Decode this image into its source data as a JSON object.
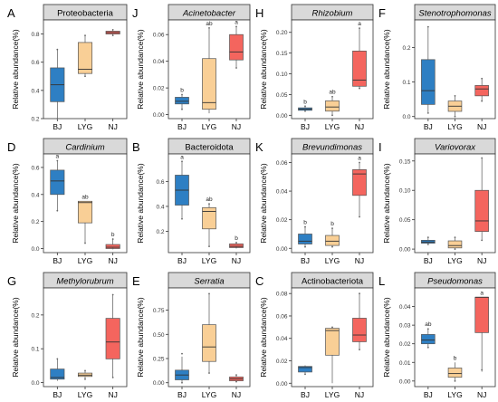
{
  "figure": {
    "ylabel": "Relative abundance(%)",
    "categories": [
      "BJ",
      "LYG",
      "NJ"
    ],
    "colors": {
      "BJ": "#2e7fc3",
      "LYG": "#f9cf96",
      "NJ": "#f4655e",
      "strip": "#d9d9d9",
      "frame": "#333333"
    }
  },
  "chart_data": [
    {
      "type": "box",
      "letter": "A",
      "title": "Proteobacteria",
      "italic": false,
      "categories": [
        "BJ",
        "LYG",
        "NJ"
      ],
      "ylim": [
        0.2,
        0.9
      ],
      "yticks": [
        0.2,
        0.4,
        0.6,
        0.8
      ],
      "ytick_labels": [
        "0.2",
        "0.4",
        "0.6",
        "0.8"
      ],
      "boxes": [
        {
          "min": 0.2,
          "q1": 0.32,
          "median": 0.44,
          "q3": 0.56,
          "max": 0.69,
          "points": [
            0.69,
            0.2
          ]
        },
        {
          "min": 0.5,
          "q1": 0.52,
          "median": 0.55,
          "q3": 0.74,
          "max": 0.79,
          "points": [
            0.79,
            0.5
          ]
        },
        {
          "min": 0.79,
          "q1": 0.8,
          "median": 0.81,
          "q3": 0.82,
          "max": 0.83,
          "points": [
            0.83,
            0.79
          ]
        }
      ],
      "sig": [
        "",
        "",
        ""
      ]
    },
    {
      "type": "box",
      "letter": "D",
      "title": "Cardinium",
      "italic": true,
      "categories": [
        "BJ",
        "LYG",
        "NJ"
      ],
      "ylim": [
        -0.03,
        0.7
      ],
      "yticks": [
        0.0,
        0.2,
        0.4,
        0.6
      ],
      "ytick_labels": [
        "0.0",
        "0.2",
        "0.4",
        "0.6"
      ],
      "boxes": [
        {
          "min": 0.28,
          "q1": 0.4,
          "median": 0.5,
          "q3": 0.58,
          "max": 0.65,
          "points": [
            0.65,
            0.28
          ]
        },
        {
          "min": 0.04,
          "q1": 0.19,
          "median": 0.34,
          "q3": 0.35,
          "max": 0.35,
          "points": [
            0.04
          ]
        },
        {
          "min": 0.0,
          "q1": 0.0,
          "median": 0.01,
          "q3": 0.03,
          "max": 0.07,
          "points": [
            0.07,
            0.0
          ]
        }
      ],
      "sig": [
        "a",
        "ab",
        "b"
      ]
    },
    {
      "type": "box",
      "letter": "G",
      "title": "Methylorubrum",
      "italic": true,
      "categories": [
        "BJ",
        "LYG",
        "NJ"
      ],
      "ylim": [
        -0.012,
        0.28
      ],
      "yticks": [
        0.0,
        0.1,
        0.2
      ],
      "ytick_labels": [
        "0.0",
        "0.1",
        "0.2"
      ],
      "boxes": [
        {
          "min": 0.005,
          "q1": 0.01,
          "median": 0.015,
          "q3": 0.04,
          "max": 0.07,
          "points": [
            0.07
          ]
        },
        {
          "min": 0.01,
          "q1": 0.018,
          "median": 0.022,
          "q3": 0.028,
          "max": 0.035,
          "points": [
            0.035,
            0.01
          ]
        },
        {
          "min": 0.015,
          "q1": 0.07,
          "median": 0.12,
          "q3": 0.19,
          "max": 0.26,
          "points": [
            0.26,
            0.015
          ]
        }
      ],
      "sig": [
        "",
        "",
        ""
      ]
    },
    {
      "type": "box",
      "letter": "J",
      "title": "Acinetobacter",
      "italic": true,
      "categories": [
        "BJ",
        "LYG",
        "NJ"
      ],
      "ylim": [
        -0.003,
        0.071
      ],
      "yticks": [
        0.0,
        0.02,
        0.04,
        0.06
      ],
      "ytick_labels": [
        "0.00",
        "0.02",
        "0.04",
        "0.06"
      ],
      "boxes": [
        {
          "min": 0.004,
          "q1": 0.008,
          "median": 0.01,
          "q3": 0.013,
          "max": 0.015,
          "points": [
            0.015,
            0.004
          ]
        },
        {
          "min": 0.001,
          "q1": 0.004,
          "median": 0.009,
          "q3": 0.042,
          "max": 0.065,
          "points": [
            0.065
          ]
        },
        {
          "min": 0.035,
          "q1": 0.041,
          "median": 0.047,
          "q3": 0.06,
          "max": 0.066,
          "points": [
            0.066,
            0.035
          ]
        }
      ],
      "sig": [
        "b",
        "ab",
        "a"
      ]
    },
    {
      "type": "box",
      "letter": "B",
      "title": "Bacteroidota",
      "italic": false,
      "categories": [
        "BJ",
        "LYG",
        "NJ"
      ],
      "ylim": [
        0.03,
        0.82
      ],
      "yticks": [
        0.2,
        0.4,
        0.6
      ],
      "ytick_labels": [
        "0.2",
        "0.4",
        "0.6"
      ],
      "boxes": [
        {
          "min": 0.3,
          "q1": 0.41,
          "median": 0.53,
          "q3": 0.65,
          "max": 0.76,
          "points": [
            0.76,
            0.3
          ]
        },
        {
          "min": 0.08,
          "q1": 0.22,
          "median": 0.36,
          "q3": 0.39,
          "max": 0.42,
          "points": [
            0.42,
            0.08
          ]
        },
        {
          "min": 0.07,
          "q1": 0.07,
          "median": 0.08,
          "q3": 0.1,
          "max": 0.11,
          "points": [
            0.11,
            0.07
          ]
        }
      ],
      "sig": [
        "a",
        "ab",
        "b"
      ]
    },
    {
      "type": "box",
      "letter": "E",
      "title": "Serratia",
      "italic": true,
      "categories": [
        "BJ",
        "LYG",
        "NJ"
      ],
      "ylim": [
        -0.04,
        0.98
      ],
      "yticks": [
        0.0,
        0.25,
        0.5,
        0.75
      ],
      "ytick_labels": [
        "0.00",
        "0.25",
        "0.50",
        "0.75"
      ],
      "boxes": [
        {
          "min": 0.0,
          "q1": 0.03,
          "median": 0.08,
          "q3": 0.13,
          "max": 0.27,
          "points": [
            0.3,
            0.0
          ]
        },
        {
          "min": 0.1,
          "q1": 0.22,
          "median": 0.37,
          "q3": 0.6,
          "max": 0.92,
          "points": [
            0.92,
            0.1
          ]
        },
        {
          "min": 0.01,
          "q1": 0.02,
          "median": 0.04,
          "q3": 0.06,
          "max": 0.08,
          "points": [
            0.08,
            0.01
          ]
        }
      ],
      "sig": [
        "",
        "",
        ""
      ]
    },
    {
      "type": "box",
      "letter": "H",
      "title": "Rhizobium",
      "italic": true,
      "categories": [
        "BJ",
        "LYG",
        "NJ"
      ],
      "ylim": [
        -0.008,
        0.23
      ],
      "yticks": [
        0.0,
        0.05,
        0.1,
        0.15,
        0.2
      ],
      "ytick_labels": [
        "0.00",
        "0.05",
        "0.10",
        "0.15",
        "0.20"
      ],
      "boxes": [
        {
          "min": 0.01,
          "q1": 0.012,
          "median": 0.015,
          "q3": 0.018,
          "max": 0.022,
          "points": [
            0.022,
            0.01
          ]
        },
        {
          "min": 0.0,
          "q1": 0.01,
          "median": 0.02,
          "q3": 0.035,
          "max": 0.045,
          "points": [
            0.045,
            0.0
          ]
        },
        {
          "min": 0.065,
          "q1": 0.07,
          "median": 0.085,
          "q3": 0.155,
          "max": 0.21,
          "points": [
            0.21,
            0.065
          ]
        }
      ],
      "sig": [
        "b",
        "ab",
        "a"
      ]
    },
    {
      "type": "box",
      "letter": "K",
      "title": "Brevundimonas",
      "italic": true,
      "categories": [
        "BJ",
        "LYG",
        "NJ"
      ],
      "ylim": [
        -0.003,
        0.066
      ],
      "yticks": [
        0.0,
        0.02,
        0.04,
        0.06
      ],
      "ytick_labels": [
        "0.00",
        "0.02",
        "0.04",
        "0.06"
      ],
      "boxes": [
        {
          "min": 0.001,
          "q1": 0.003,
          "median": 0.005,
          "q3": 0.01,
          "max": 0.015,
          "points": [
            0.015,
            0.001
          ]
        },
        {
          "min": 0.001,
          "q1": 0.002,
          "median": 0.005,
          "q3": 0.009,
          "max": 0.014,
          "points": [
            0.014,
            0.001
          ]
        },
        {
          "min": 0.022,
          "q1": 0.037,
          "median": 0.052,
          "q3": 0.055,
          "max": 0.06,
          "points": [
            0.06,
            0.022
          ]
        }
      ],
      "sig": [
        "b",
        "b",
        "a"
      ]
    },
    {
      "type": "box",
      "letter": "C",
      "title": "Actinobacteriota",
      "italic": false,
      "categories": [
        "BJ",
        "LYG",
        "NJ"
      ],
      "ylim": [
        -0.003,
        0.085
      ],
      "yticks": [
        0.0,
        0.02,
        0.04,
        0.06,
        0.08
      ],
      "ytick_labels": [
        "0.00",
        "0.02",
        "0.04",
        "0.06",
        "0.08"
      ],
      "boxes": [
        {
          "min": 0.008,
          "q1": 0.01,
          "median": 0.014,
          "q3": 0.015,
          "max": 0.016,
          "points": [
            0.008
          ]
        },
        {
          "min": 0.0,
          "q1": 0.025,
          "median": 0.047,
          "q3": 0.049,
          "max": 0.05,
          "points": [
            0.05
          ]
        },
        {
          "min": 0.03,
          "q1": 0.037,
          "median": 0.043,
          "q3": 0.058,
          "max": 0.08,
          "points": [
            0.08,
            0.03
          ]
        }
      ],
      "sig": [
        "",
        "",
        ""
      ]
    },
    {
      "type": "box",
      "letter": "F",
      "title": "Stenotrophomonas",
      "italic": true,
      "categories": [
        "BJ",
        "LYG",
        "NJ"
      ],
      "ylim": [
        -0.006,
        0.28
      ],
      "yticks": [
        0.0,
        0.1,
        0.2
      ],
      "ytick_labels": [
        "0.0",
        "0.1",
        "0.2"
      ],
      "boxes": [
        {
          "min": 0.01,
          "q1": 0.035,
          "median": 0.075,
          "q3": 0.165,
          "max": 0.26,
          "points": [
            0.26,
            0.01
          ]
        },
        {
          "min": 0.0,
          "q1": 0.015,
          "median": 0.03,
          "q3": 0.045,
          "max": 0.06,
          "points": [
            0.06,
            0.0
          ]
        },
        {
          "min": 0.045,
          "q1": 0.06,
          "median": 0.08,
          "q3": 0.09,
          "max": 0.11,
          "points": [
            0.11,
            0.045
          ]
        }
      ],
      "sig": [
        "",
        "",
        ""
      ]
    },
    {
      "type": "box",
      "letter": "I",
      "title": "Variovorax",
      "italic": true,
      "categories": [
        "BJ",
        "LYG",
        "NJ"
      ],
      "ylim": [
        -0.006,
        0.162
      ],
      "yticks": [
        0.0,
        0.05,
        0.1,
        0.15
      ],
      "ytick_labels": [
        "0.00",
        "0.05",
        "0.10",
        "0.15"
      ],
      "boxes": [
        {
          "min": 0.008,
          "q1": 0.01,
          "median": 0.012,
          "q3": 0.015,
          "max": 0.02,
          "points": [
            0.02,
            0.008
          ]
        },
        {
          "min": 0.0,
          "q1": 0.002,
          "median": 0.006,
          "q3": 0.014,
          "max": 0.02,
          "points": [
            0.02,
            0.0
          ]
        },
        {
          "min": 0.015,
          "q1": 0.03,
          "median": 0.048,
          "q3": 0.1,
          "max": 0.155,
          "points": [
            0.155,
            0.015
          ]
        }
      ],
      "sig": [
        "",
        "",
        ""
      ]
    },
    {
      "type": "box",
      "letter": "L",
      "title": "Pseudomonas",
      "italic": true,
      "categories": [
        "BJ",
        "LYG",
        "NJ"
      ],
      "ylim": [
        -0.003,
        0.05
      ],
      "yticks": [
        0.0,
        0.01,
        0.02,
        0.03,
        0.04
      ],
      "ytick_labels": [
        "0.00",
        "0.01",
        "0.02",
        "0.03",
        "0.04"
      ],
      "boxes": [
        {
          "min": 0.018,
          "q1": 0.02,
          "median": 0.022,
          "q3": 0.025,
          "max": 0.028,
          "points": [
            0.028,
            0.018
          ]
        },
        {
          "min": 0.0,
          "q1": 0.002,
          "median": 0.004,
          "q3": 0.007,
          "max": 0.01,
          "points": [
            0.0
          ]
        },
        {
          "min": 0.005,
          "q1": 0.026,
          "median": 0.045,
          "q3": 0.045,
          "max": 0.045,
          "points": [
            0.006
          ]
        }
      ],
      "sig": [
        "ab",
        "b",
        "a"
      ]
    }
  ]
}
